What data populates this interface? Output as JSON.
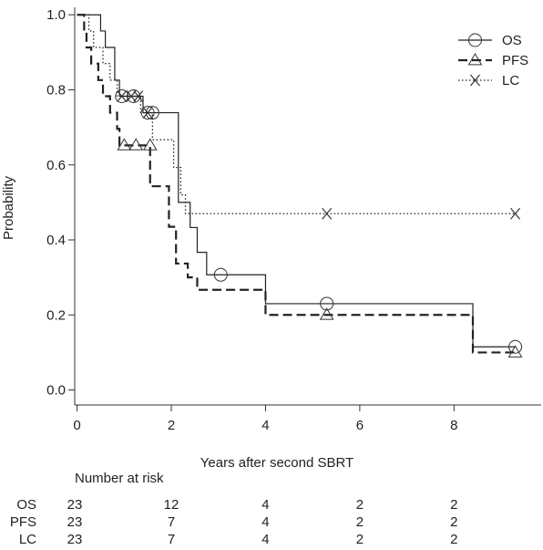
{
  "chart_data": {
    "type": "line",
    "subtype": "kaplan-meier",
    "title": "",
    "xlabel": "Years after second SBRT",
    "ylabel": "Probability",
    "xlim": [
      0,
      10
    ],
    "ylim": [
      0,
      1
    ],
    "x_ticks": [
      "0",
      "2",
      "4",
      "6",
      "8"
    ],
    "y_ticks": [
      "0.0",
      "0.2",
      "0.4",
      "0.6",
      "0.8",
      "1.0"
    ],
    "legend_position": "top-right",
    "series": [
      {
        "name": "OS",
        "line_style": "solid",
        "marker": "circle",
        "steps": [
          [
            0,
            1.0
          ],
          [
            0.5,
            0.957
          ],
          [
            0.6,
            0.913
          ],
          [
            0.8,
            0.826
          ],
          [
            0.9,
            0.783
          ],
          [
            1.4,
            0.739
          ],
          [
            1.5,
            0.739
          ],
          [
            2.15,
            0.739
          ],
          [
            2.15,
            0.5
          ],
          [
            2.3,
            0.5
          ],
          [
            2.4,
            0.433
          ],
          [
            2.55,
            0.367
          ],
          [
            2.75,
            0.367
          ],
          [
            2.75,
            0.307
          ],
          [
            4.0,
            0.307
          ],
          [
            4.0,
            0.23
          ],
          [
            8.4,
            0.23
          ],
          [
            8.4,
            0.115
          ],
          [
            9.3,
            0.115
          ]
        ],
        "censor_marks": [
          [
            0.95,
            0.783
          ],
          [
            1.2,
            0.783
          ],
          [
            1.5,
            0.739
          ],
          [
            1.6,
            0.739
          ],
          [
            3.05,
            0.307
          ],
          [
            5.3,
            0.23
          ],
          [
            9.3,
            0.115
          ]
        ]
      },
      {
        "name": "PFS",
        "line_style": "dashed",
        "marker": "triangle",
        "steps": [
          [
            0,
            1.0
          ],
          [
            0.15,
            0.957
          ],
          [
            0.2,
            0.913
          ],
          [
            0.3,
            0.87
          ],
          [
            0.45,
            0.826
          ],
          [
            0.55,
            0.783
          ],
          [
            0.7,
            0.739
          ],
          [
            0.85,
            0.696
          ],
          [
            0.9,
            0.652
          ],
          [
            1.55,
            0.652
          ],
          [
            1.55,
            0.543
          ],
          [
            1.95,
            0.543
          ],
          [
            1.95,
            0.435
          ],
          [
            2.1,
            0.435
          ],
          [
            2.1,
            0.337
          ],
          [
            2.35,
            0.337
          ],
          [
            2.35,
            0.3
          ],
          [
            2.55,
            0.3
          ],
          [
            2.55,
            0.267
          ],
          [
            4.0,
            0.267
          ],
          [
            4.0,
            0.2
          ],
          [
            8.4,
            0.2
          ],
          [
            8.4,
            0.1
          ],
          [
            9.3,
            0.1
          ]
        ],
        "censor_marks": [
          [
            1.0,
            0.652
          ],
          [
            1.25,
            0.652
          ],
          [
            1.55,
            0.652
          ],
          [
            5.3,
            0.2
          ],
          [
            9.3,
            0.1
          ]
        ]
      },
      {
        "name": "LC",
        "line_style": "dotted",
        "marker": "x",
        "steps": [
          [
            0,
            1.0
          ],
          [
            0.25,
            0.957
          ],
          [
            0.35,
            0.913
          ],
          [
            0.55,
            0.87
          ],
          [
            0.7,
            0.826
          ],
          [
            0.85,
            0.783
          ],
          [
            1.35,
            0.739
          ],
          [
            1.55,
            0.739
          ],
          [
            1.6,
            0.667
          ],
          [
            2.05,
            0.667
          ],
          [
            2.05,
            0.593
          ],
          [
            2.2,
            0.593
          ],
          [
            2.2,
            0.52
          ],
          [
            2.3,
            0.52
          ],
          [
            2.3,
            0.47
          ],
          [
            9.3,
            0.47
          ]
        ],
        "censor_marks": [
          [
            0.95,
            0.783
          ],
          [
            1.15,
            0.783
          ],
          [
            1.3,
            0.783
          ],
          [
            1.5,
            0.739
          ],
          [
            5.3,
            0.47
          ],
          [
            9.3,
            0.47
          ]
        ]
      }
    ],
    "number_at_risk": {
      "title": "Number at risk",
      "times": [
        0,
        2,
        4,
        6,
        8
      ],
      "rows": [
        {
          "label": "OS",
          "values": [
            "23",
            "12",
            "4",
            "2",
            "2"
          ]
        },
        {
          "label": "PFS",
          "values": [
            "23",
            "7",
            "4",
            "2",
            "2"
          ]
        },
        {
          "label": "LC",
          "values": [
            "23",
            "7",
            "4",
            "2",
            "2"
          ]
        }
      ]
    }
  }
}
